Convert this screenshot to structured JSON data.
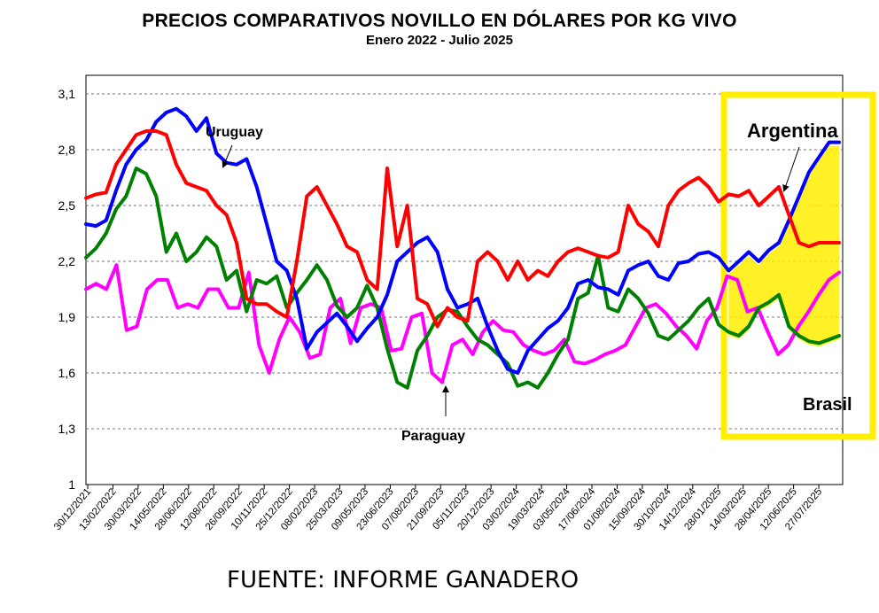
{
  "title": "PRECIOS COMPARATIVOS NOVILLO EN DÓLARES POR KG  VIVO",
  "subtitle": "Enero  2022 -  Julio 2025",
  "source": "FUENTE: INFORME GANADERO",
  "chart_data": {
    "type": "line",
    "title": "PRECIOS COMPARATIVOS NOVILLO EN DÓLARES POR KG  VIVO",
    "subtitle": "Enero  2022 -  Julio 2025",
    "ylim": [
      1,
      3.2
    ],
    "yticks": [
      1,
      1.3,
      1.6,
      1.9,
      2.2,
      2.5,
      2.8,
      3.1
    ],
    "ytick_labels": [
      "1",
      "1,3",
      "1,6",
      "1,9",
      "2,2",
      "2,5",
      "2,8",
      "3,1"
    ],
    "grid": "horizontal dashed",
    "x_tick_labels": [
      "30/12/2021",
      "13/02/2022",
      "30/03/2022",
      "14/05/2022",
      "28/06/2022",
      "12/08/2022",
      "26/09/2022",
      "10/11/2022",
      "25/12/2022",
      "08/02/2023",
      "25/03/2023",
      "09/05/2023",
      "23/06/2023",
      "07/08/2023",
      "21/09/2023",
      "05/11/2023",
      "20/12/2023",
      "03/02/2024",
      "19/03/2024",
      "03/05/2024",
      "17/06/2024",
      "01/08/2024",
      "15/09/2024",
      "30/10/2024",
      "14/12/2024",
      "28/01/2025",
      "14/03/2025",
      "28/04/2025",
      "12/06/2025",
      "27/07/2025"
    ],
    "annotations": [
      {
        "text": "Uruguay"
      },
      {
        "text": "Argentina"
      },
      {
        "text": "Paraguay"
      },
      {
        "text": "Brasil"
      }
    ],
    "highlight": {
      "description": "yellow box around the 2025 period",
      "color": "#ffee00"
    },
    "series": [
      {
        "name": "Uruguay",
        "color": "#0000ff",
        "values": [
          2.4,
          2.39,
          2.42,
          2.58,
          2.72,
          2.8,
          2.85,
          2.95,
          3.0,
          3.02,
          2.98,
          2.9,
          2.97,
          2.78,
          2.73,
          2.72,
          2.75,
          2.6,
          2.4,
          2.2,
          2.15,
          2.0,
          1.73,
          1.82,
          1.87,
          1.92,
          1.85,
          1.77,
          1.84,
          1.9,
          2.02,
          2.2,
          2.25,
          2.3,
          2.33,
          2.25,
          2.05,
          1.95,
          1.97,
          2.0,
          1.85,
          1.72,
          1.62,
          1.6,
          1.72,
          1.78,
          1.84,
          1.88,
          1.95,
          2.08,
          2.1,
          2.06,
          2.05,
          2.02,
          2.15,
          2.18,
          2.2,
          2.12,
          2.1,
          2.19,
          2.2,
          2.24,
          2.25,
          2.22,
          2.15,
          2.2,
          2.25,
          2.2,
          2.26,
          2.3,
          2.42,
          2.55,
          2.68,
          2.76,
          2.84,
          2.84
        ]
      },
      {
        "name": "Argentina",
        "color": "#ff0000",
        "values": [
          2.54,
          2.56,
          2.57,
          2.72,
          2.8,
          2.88,
          2.9,
          2.9,
          2.88,
          2.72,
          2.62,
          2.6,
          2.58,
          2.5,
          2.45,
          2.3,
          2.0,
          1.97,
          1.97,
          1.93,
          1.9,
          2.2,
          2.55,
          2.6,
          2.5,
          2.4,
          2.28,
          2.25,
          2.1,
          2.05,
          2.7,
          2.28,
          2.5,
          2.0,
          1.97,
          1.85,
          1.95,
          1.9,
          1.88,
          2.2,
          2.25,
          2.2,
          2.1,
          2.2,
          2.1,
          2.15,
          2.12,
          2.2,
          2.25,
          2.27,
          2.25,
          2.23,
          2.22,
          2.25,
          2.5,
          2.4,
          2.36,
          2.28,
          2.5,
          2.58,
          2.62,
          2.65,
          2.6,
          2.52,
          2.56,
          2.55,
          2.58,
          2.5,
          2.55,
          2.6,
          2.45,
          2.3,
          2.28,
          2.3,
          2.3,
          2.3
        ]
      },
      {
        "name": "Paraguay",
        "color": "#ff00ff",
        "values": [
          2.05,
          2.08,
          2.05,
          2.18,
          1.83,
          1.85,
          2.05,
          2.1,
          2.1,
          1.95,
          1.97,
          1.95,
          2.05,
          2.05,
          1.95,
          1.95,
          2.14,
          1.75,
          1.6,
          1.78,
          1.9,
          1.82,
          1.68,
          1.7,
          1.95,
          2.0,
          1.76,
          1.95,
          1.97,
          1.95,
          1.72,
          1.73,
          1.9,
          1.92,
          1.6,
          1.55,
          1.75,
          1.78,
          1.7,
          1.82,
          1.88,
          1.83,
          1.82,
          1.75,
          1.72,
          1.7,
          1.72,
          1.78,
          1.66,
          1.65,
          1.67,
          1.7,
          1.72,
          1.75,
          1.85,
          1.95,
          1.97,
          1.92,
          1.85,
          1.8,
          1.73,
          1.88,
          1.95,
          2.12,
          2.1,
          1.93,
          1.95,
          1.82,
          1.7,
          1.75,
          1.85,
          1.93,
          2.02,
          2.1,
          2.14
        ]
      },
      {
        "name": "Brasil",
        "color": "#008000",
        "values": [
          2.22,
          2.27,
          2.35,
          2.48,
          2.55,
          2.7,
          2.67,
          2.55,
          2.25,
          2.35,
          2.2,
          2.25,
          2.33,
          2.28,
          2.1,
          2.15,
          1.93,
          2.1,
          2.08,
          2.12,
          1.95,
          2.03,
          2.1,
          2.18,
          2.1,
          1.96,
          1.9,
          1.95,
          2.07,
          1.95,
          1.73,
          1.55,
          1.52,
          1.72,
          1.8,
          1.9,
          1.94,
          1.93,
          1.85,
          1.78,
          1.75,
          1.7,
          1.65,
          1.53,
          1.55,
          1.52,
          1.6,
          1.7,
          1.78,
          2.0,
          2.03,
          2.23,
          1.95,
          1.93,
          2.05,
          2.0,
          1.92,
          1.8,
          1.78,
          1.83,
          1.88,
          1.95,
          2.0,
          1.86,
          1.82,
          1.8,
          1.85,
          1.95,
          1.98,
          2.02,
          1.85,
          1.8,
          1.77,
          1.76,
          1.78,
          1.8
        ]
      }
    ]
  }
}
